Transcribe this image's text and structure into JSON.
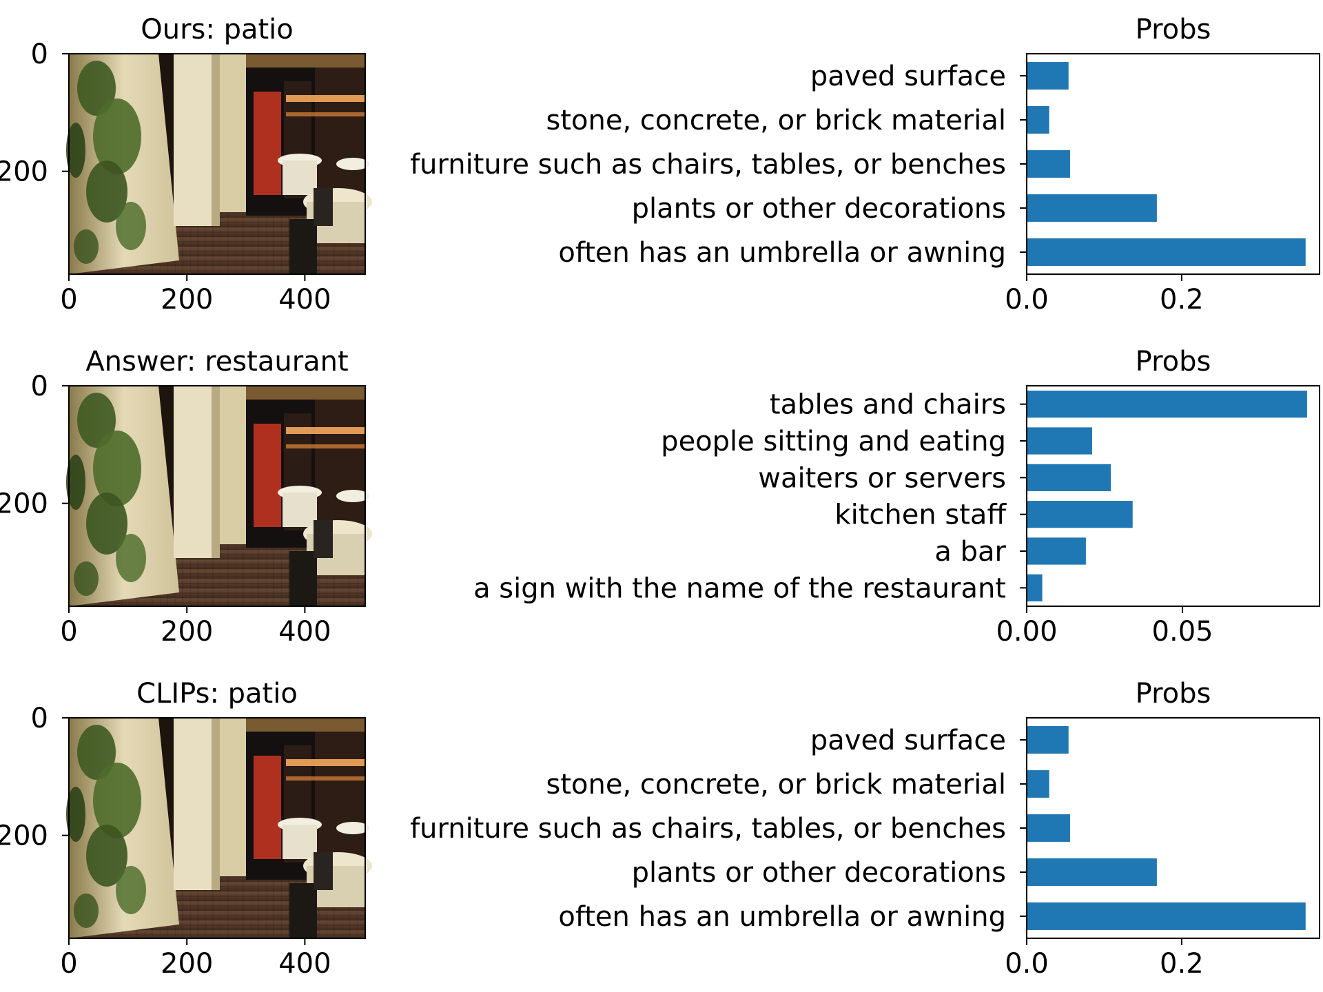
{
  "colors": {
    "bar": "#1f77b4",
    "axes": "#000000",
    "background": "#ffffff",
    "photo_wall": "#d9cfa6",
    "photo_floor": "#5a4030",
    "photo_interior": "#2a1a12",
    "photo_red": "#b03020",
    "photo_plants": "#4a6a2a"
  },
  "panels": [
    {
      "image_title": "Ours: patio",
      "image_description_icon": "restaurant-patio-photo",
      "image_x_ticks": [
        "0",
        "200",
        "400"
      ],
      "image_y_ticks": [
        "0",
        "200"
      ]
    },
    {
      "image_title": "Answer: restaurant",
      "image_description_icon": "restaurant-patio-photo",
      "image_x_ticks": [
        "0",
        "200",
        "400"
      ],
      "image_y_ticks": [
        "0",
        "200"
      ]
    },
    {
      "image_title": "CLIPs: patio",
      "image_description_icon": "restaurant-patio-photo",
      "image_x_ticks": [
        "0",
        "200",
        "400"
      ],
      "image_y_ticks": [
        "0",
        "200"
      ]
    }
  ],
  "chart_data": [
    {
      "type": "bar",
      "orientation": "horizontal",
      "title": "Probs",
      "xlabel": "",
      "ylabel": "",
      "categories": [
        "paved surface",
        "stone, concrete, or brick material",
        "furniture such as chairs, tables, or benches",
        "plants or other decorations",
        "often has an umbrella or awning"
      ],
      "values": [
        0.054,
        0.029,
        0.056,
        0.168,
        0.36
      ],
      "xlim": [
        0,
        0.378
      ],
      "x_ticks": [
        0.0,
        0.2
      ],
      "x_tick_labels": [
        "0.0",
        "0.2"
      ],
      "grid": false
    },
    {
      "type": "bar",
      "orientation": "horizontal",
      "title": "Probs",
      "xlabel": "",
      "ylabel": "",
      "categories": [
        "tables and chairs",
        "people sitting and eating",
        "waiters or servers",
        "kitchen staff",
        "a bar",
        "a sign with the name of the restaurant"
      ],
      "values": [
        0.09,
        0.021,
        0.027,
        0.034,
        0.019,
        0.005
      ],
      "xlim": [
        0,
        0.094
      ],
      "x_ticks": [
        0.0,
        0.05
      ],
      "x_tick_labels": [
        "0.00",
        "0.05"
      ],
      "grid": false
    },
    {
      "type": "bar",
      "orientation": "horizontal",
      "title": "Probs",
      "xlabel": "",
      "ylabel": "",
      "categories": [
        "paved surface",
        "stone, concrete, or brick material",
        "furniture such as chairs, tables, or benches",
        "plants or other decorations",
        "often has an umbrella or awning"
      ],
      "values": [
        0.054,
        0.029,
        0.056,
        0.168,
        0.36
      ],
      "xlim": [
        0,
        0.378
      ],
      "x_ticks": [
        0.0,
        0.2
      ],
      "x_tick_labels": [
        "0.0",
        "0.2"
      ],
      "grid": false
    }
  ]
}
